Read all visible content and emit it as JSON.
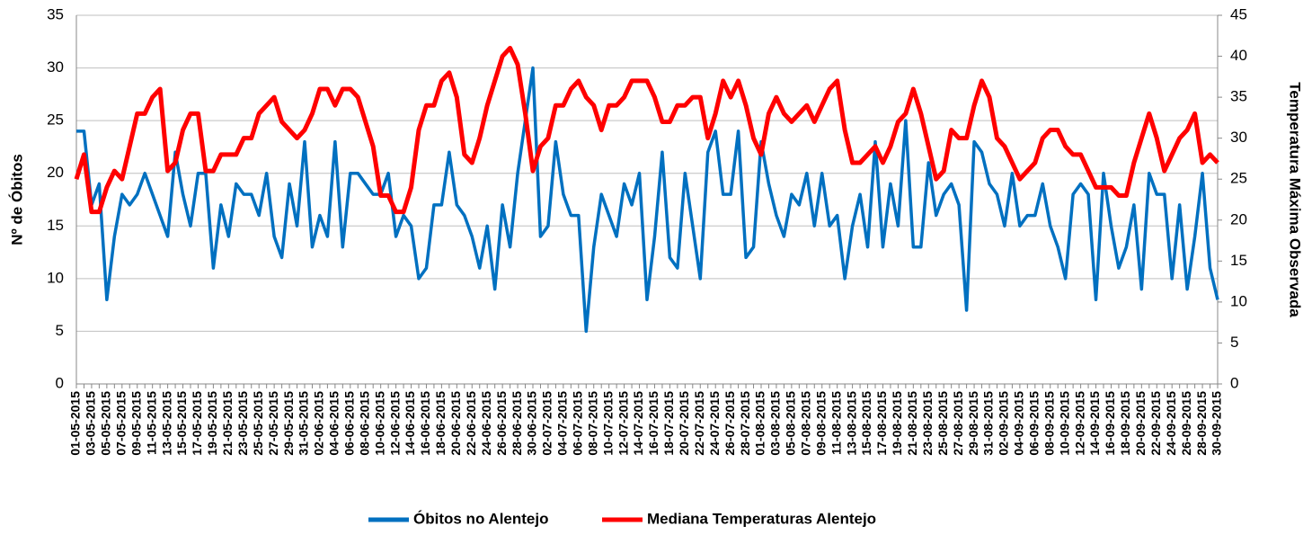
{
  "chart_data": {
    "type": "line",
    "y_label": "Nº de Óbitos",
    "y2_label": "Temperatura Máxima Observada",
    "ylim": [
      0,
      35
    ],
    "yticks": [
      0,
      5,
      10,
      15,
      20,
      25,
      30,
      35
    ],
    "y2lim": [
      0,
      45
    ],
    "y2ticks": [
      0,
      5,
      10,
      15,
      20,
      25,
      30,
      35,
      40,
      45
    ],
    "grid": true,
    "legend": "bottom",
    "categories": [
      "01-05-2015",
      null,
      "03-05-2015",
      null,
      "05-05-2015",
      null,
      "07-05-2015",
      null,
      "09-05-2015",
      null,
      "11-05-2015",
      null,
      "13-05-2015",
      null,
      "15-05-2015",
      null,
      "17-05-2015",
      null,
      "19-05-2015",
      null,
      "21-05-2015",
      null,
      "23-05-2015",
      null,
      "25-05-2015",
      null,
      "27-05-2015",
      null,
      "29-05-2015",
      null,
      "31-05-2015",
      null,
      "02-06-2015",
      null,
      "04-06-2015",
      null,
      "06-06-2015",
      null,
      "08-06-2015",
      null,
      "10-06-2015",
      null,
      "12-06-2015",
      null,
      "14-06-2015",
      null,
      "16-06-2015",
      null,
      "18-06-2015",
      null,
      "20-06-2015",
      null,
      "22-06-2015",
      null,
      "24-06-2015",
      null,
      "26-06-2015",
      null,
      "28-06-2015",
      null,
      "30-06-2015",
      null,
      "02-07-2015",
      null,
      "04-07-2015",
      null,
      "06-07-2015",
      null,
      "08-07-2015",
      null,
      "10-07-2015",
      null,
      "12-07-2015",
      null,
      "14-07-2015",
      null,
      "16-07-2015",
      null,
      "18-07-2015",
      null,
      "20-07-2015",
      null,
      "22-07-2015",
      null,
      "24-07-2015",
      null,
      "26-07-2015",
      null,
      "28-07-2015",
      null,
      "01-08-2015",
      null,
      "03-08-2015",
      null,
      "05-08-2015",
      null,
      "07-08-2015",
      null,
      "09-08-2015",
      null,
      "11-08-2015",
      null,
      "13-08-2015",
      null,
      "15-08-2015",
      null,
      "17-08-2015",
      null,
      "19-08-2015",
      null,
      "21-08-2015",
      null,
      "23-08-2015",
      null,
      "25-08-2015",
      null,
      "27-08-2015",
      null,
      "29-08-2015",
      null,
      "31-08-2015",
      null,
      "02-09-2015",
      null,
      "04-09-2015",
      null,
      "06-09-2015",
      null,
      "08-09-2015",
      null,
      "10-09-2015",
      null,
      "12-09-2015",
      null,
      "14-09-2015",
      null,
      "16-09-2015",
      null,
      "18-09-2015",
      null,
      "20-09-2015",
      null,
      "22-09-2015",
      null,
      "24-09-2015",
      null,
      "26-09-2015",
      null,
      "28-09-2015",
      null,
      "30-09-2015"
    ],
    "series": [
      {
        "name": "Óbitos no Alentejo",
        "color": "#0070c0",
        "axis": "y",
        "values": [
          24,
          24,
          17,
          19,
          8,
          14,
          18,
          17,
          18,
          20,
          18,
          16,
          14,
          22,
          18,
          15,
          20,
          20,
          11,
          17,
          14,
          19,
          18,
          18,
          16,
          20,
          14,
          12,
          19,
          15,
          23,
          13,
          16,
          14,
          23,
          13,
          20,
          20,
          19,
          18,
          18,
          20,
          14,
          16,
          15,
          10,
          11,
          17,
          17,
          22,
          17,
          16,
          14,
          11,
          15,
          9,
          17,
          13,
          20,
          25,
          30,
          14,
          15,
          23,
          18,
          16,
          16,
          5,
          13,
          18,
          16,
          14,
          19,
          17,
          20,
          8,
          14,
          22,
          12,
          11,
          20,
          15,
          10,
          22,
          24,
          18,
          18,
          24,
          12,
          13,
          23,
          19,
          16,
          14,
          18,
          17,
          20,
          15,
          20,
          15,
          16,
          10,
          15,
          18,
          13,
          23,
          13,
          19,
          15,
          25,
          13,
          13,
          21,
          16,
          18,
          19,
          17,
          7,
          23,
          22,
          19,
          18,
          15,
          20,
          15,
          16,
          16,
          19,
          15,
          13,
          10,
          18,
          19,
          18,
          8,
          20,
          15,
          11,
          13,
          17,
          9,
          20,
          18,
          18,
          10,
          17,
          9,
          14,
          20,
          11,
          8
        ]
      },
      {
        "name": "Mediana Temperaturas Alentejo",
        "color": "#ff0000",
        "axis": "y2",
        "values": [
          25,
          28,
          21,
          21,
          24,
          26,
          25,
          29,
          33,
          33,
          35,
          36,
          26,
          27,
          31,
          33,
          33,
          26,
          26,
          28,
          28,
          28,
          30,
          30,
          33,
          34,
          35,
          32,
          31,
          30,
          31,
          33,
          36,
          36,
          34,
          36,
          36,
          35,
          32,
          29,
          23,
          23,
          21,
          21,
          24,
          31,
          34,
          34,
          37,
          38,
          35,
          28,
          27,
          30,
          34,
          37,
          40,
          41,
          39,
          33,
          26,
          29,
          30,
          34,
          34,
          36,
          37,
          35,
          34,
          31,
          34,
          34,
          35,
          37,
          37,
          37,
          35,
          32,
          32,
          34,
          34,
          35,
          35,
          30,
          33,
          37,
          35,
          37,
          34,
          30,
          28,
          33,
          35,
          33,
          32,
          33,
          34,
          32,
          34,
          36,
          37,
          31,
          27,
          27,
          28,
          29,
          27,
          29,
          32,
          33,
          36,
          33,
          29,
          25,
          26,
          31,
          30,
          30,
          34,
          37,
          35,
          30,
          29,
          27,
          25,
          26,
          27,
          30,
          31,
          31,
          29,
          28,
          28,
          26,
          24,
          24,
          24,
          23,
          23,
          27,
          30,
          33,
          30,
          26,
          28,
          30,
          31,
          33,
          27,
          28,
          27
        ]
      }
    ]
  }
}
